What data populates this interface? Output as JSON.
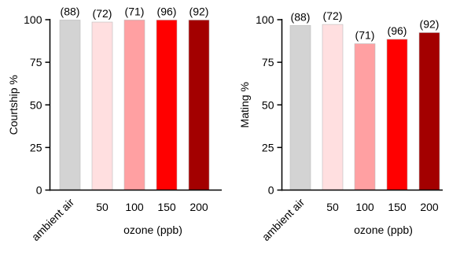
{
  "chart_data": [
    {
      "type": "bar",
      "ylabel": "Courtship %",
      "xlabel": "ozone (ppb)",
      "categories": [
        "ambient air",
        "50",
        "100",
        "150",
        "200"
      ],
      "values": [
        99.8,
        98.6,
        99.8,
        99.8,
        99.8
      ],
      "bar_labels": [
        "(88)",
        "(72)",
        "(71)",
        "(96)",
        "(92)"
      ],
      "colors": [
        "#d3d3d3",
        "#ffdfe0",
        "#ffa0a2",
        "#ff0000",
        "#a30000"
      ],
      "ylim": [
        0,
        100
      ],
      "yticks": [
        0,
        25,
        50,
        75,
        100
      ],
      "grid": false
    },
    {
      "type": "bar",
      "ylabel": "Mating %",
      "xlabel": "ozone (ppb)",
      "categories": [
        "ambient air",
        "50",
        "100",
        "150",
        "200"
      ],
      "values": [
        96.6,
        97.2,
        85.9,
        88.5,
        92.4
      ],
      "bar_labels": [
        "(88)",
        "(72)",
        "(71)",
        "(96)",
        "(92)"
      ],
      "colors": [
        "#d3d3d3",
        "#ffdfe0",
        "#ffa0a2",
        "#ff0000",
        "#a30000"
      ],
      "ylim": [
        0,
        100
      ],
      "yticks": [
        0,
        25,
        50,
        75,
        100
      ],
      "grid": false
    }
  ]
}
